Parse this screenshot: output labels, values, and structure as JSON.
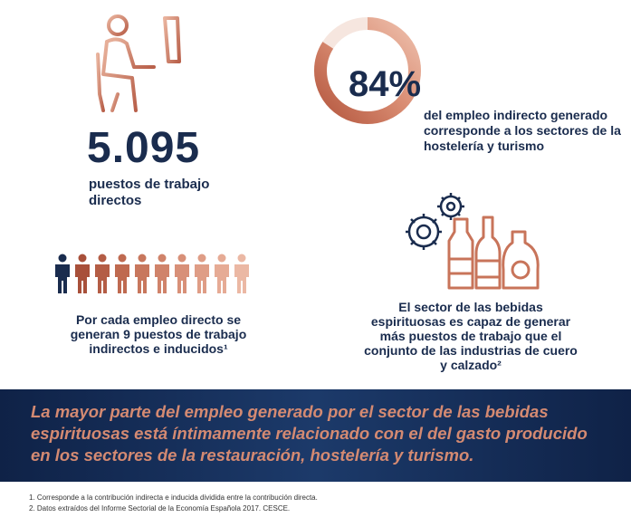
{
  "stats": {
    "jobs_number": "5.095",
    "jobs_caption": "puestos de trabajo directos",
    "percent": "84%",
    "percent_value": 84,
    "percent_caption": "del empleo indirecto generado corresponde a los sectores de la hostelería y turismo",
    "multiplier_caption": "Por cada empleo directo se generan 9 puestos de trabajo indirectos e inducidos¹",
    "sector_caption": "El sector de las bebidas espirituosas es capaz de generar más puestos de trabajo que el conjunto de las industrias de cuero y calzado²"
  },
  "banner": {
    "text": "La mayor parte del empleo generado por el sector de las bebidas espirituosas está íntimamente relacionado con el del gasto producido en los sectores de la restauración, hostelería y turismo."
  },
  "footnotes": {
    "note1": "1. Corresponde a la contribución indirecta e inducida dividida entre la contribución directa.",
    "note2": "2. Datos extraídos del Informe Sectorial de la Economía Española 2017. CESCE."
  },
  "icons": {
    "worker": "person-at-desk-icon",
    "people": "people-row-icon",
    "gears": "gears-icon",
    "bottles": "bottles-icon"
  },
  "colors": {
    "navy": "#1a2c4e",
    "copper": "#c8745a",
    "copper_light": "#e7b09a",
    "banner_text": "#d48a72"
  }
}
